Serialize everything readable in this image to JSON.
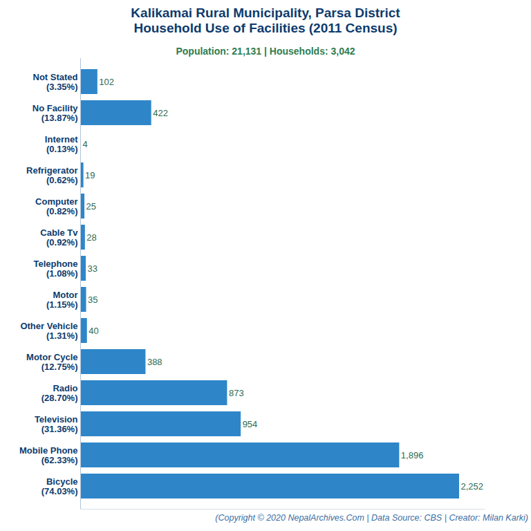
{
  "chart_data": {
    "type": "bar",
    "orientation": "horizontal",
    "title": "Kalikamai Rural Municipality, Parsa District\nHousehold Use of Facilities (2011 Census)",
    "subtitle": "Population: 21,131 | Households: 3,042",
    "caption": "(Copyright © 2020 NepalArchives.Com | Data Source: CBS | Creator: Milan Karki)",
    "categories": [
      "Not Stated\n(3.35%)",
      "No Facility\n(13.87%)",
      "Internet\n(0.13%)",
      "Refrigerator\n(0.62%)",
      "Computer\n(0.82%)",
      "Cable Tv\n(0.92%)",
      "Telephone\n(1.08%)",
      "Motor\n(1.15%)",
      "Other Vehicle\n(1.31%)",
      "Motor Cycle\n(12.75%)",
      "Radio\n(28.70%)",
      "Television\n(31.36%)",
      "Mobile Phone\n(62.33%)",
      "Bicycle\n(74.03%)"
    ],
    "values": [
      102,
      422,
      4,
      19,
      25,
      28,
      33,
      35,
      40,
      388,
      873,
      954,
      1896,
      2252
    ],
    "value_labels": [
      "102",
      "422",
      "4",
      "19",
      "25",
      "28",
      "33",
      "35",
      "40",
      "388",
      "873",
      "954",
      "1,896",
      "2,252"
    ],
    "color": "#2e86c9",
    "xlim": [
      0,
      2400
    ],
    "data_labels": true,
    "tick_labels": "y",
    "grid": false
  }
}
